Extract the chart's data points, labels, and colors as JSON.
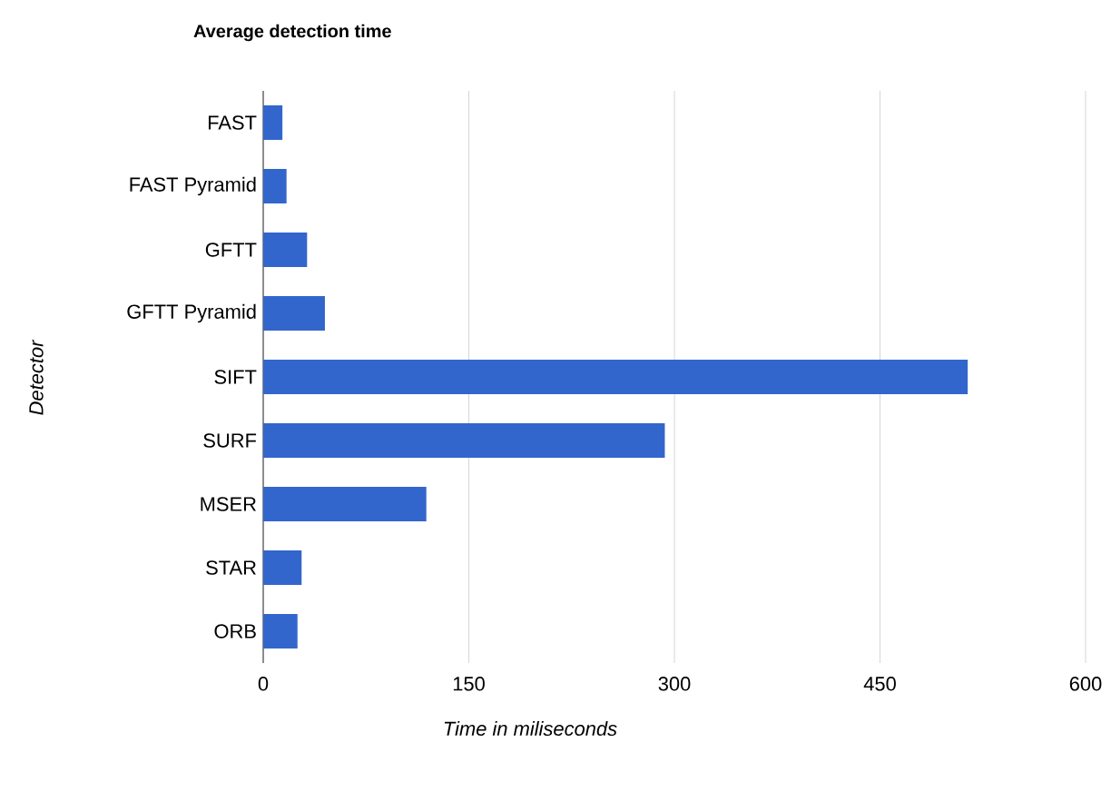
{
  "chart_data": {
    "type": "bar",
    "orientation": "horizontal",
    "title": "Average detection time",
    "xlabel": "Time in miliseconds",
    "ylabel": "Detector",
    "categories": [
      "FAST",
      "FAST Pyramid",
      "GFTT",
      "GFTT Pyramid",
      "SIFT",
      "SURF",
      "MSER",
      "STAR",
      "ORB"
    ],
    "values": [
      14,
      17,
      32,
      45,
      514,
      293,
      119,
      28,
      25
    ],
    "color": "#3366cc",
    "xlim": [
      0,
      600
    ],
    "xticks": [
      0,
      150,
      300,
      450,
      600
    ],
    "grid": "x"
  }
}
